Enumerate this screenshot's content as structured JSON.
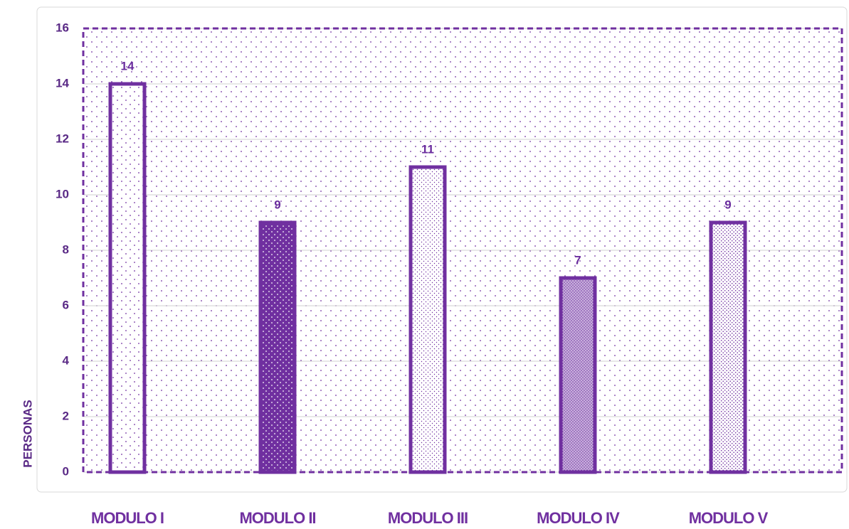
{
  "chart_data": {
    "type": "bar",
    "categories": [
      "MODULO I",
      "MODULO II",
      "MODULO III",
      "MODULO IV",
      "MODULO V"
    ],
    "values": [
      14,
      9,
      11,
      7,
      9
    ],
    "color": "#7030a0",
    "y_axis_label": "PERSONAS",
    "ylim": [
      0,
      16
    ],
    "yticks": [
      0,
      2,
      4,
      6,
      8,
      10,
      12,
      14,
      16
    ],
    "grid": true
  }
}
